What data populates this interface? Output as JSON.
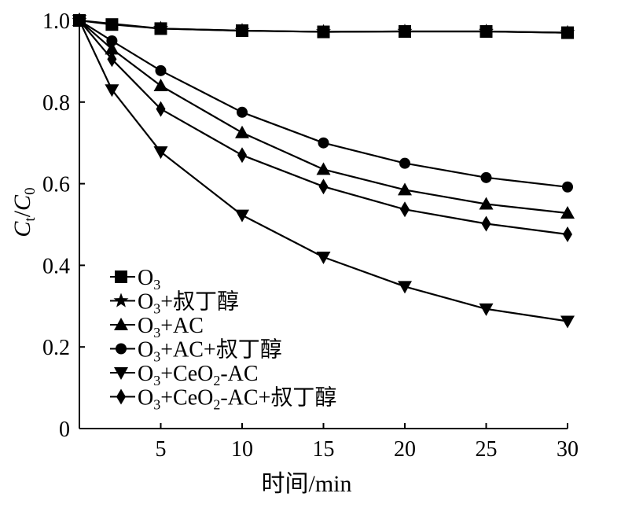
{
  "chart_data": {
    "type": "line",
    "xlabel": "时间/min",
    "ylabel": {
      "base": "C",
      "sub1": "t",
      "slash": "/",
      "base2": "C",
      "sub2": "0"
    },
    "xlim": [
      0,
      30
    ],
    "ylim": [
      0,
      1.0
    ],
    "x_ticks": [
      5,
      10,
      15,
      20,
      25,
      30
    ],
    "x_tick_labels": [
      "5",
      "10",
      "15",
      "20",
      "25",
      "30"
    ],
    "y_ticks": [
      0,
      0.2,
      0.4,
      0.6,
      0.8,
      1.0
    ],
    "y_tick_labels": [
      "0",
      "0.2",
      "0.4",
      "0.6",
      "0.8",
      "1.0"
    ],
    "grid": false,
    "legend_position": "lower-left",
    "x": [
      0,
      2,
      5,
      10,
      15,
      20,
      25,
      30
    ],
    "series": [
      {
        "name": "O3",
        "legend": {
          "pre": "O",
          "sub": "3",
          "post": ""
        },
        "marker": "square",
        "x": [
          0,
          2,
          5,
          10,
          15,
          20,
          25,
          30
        ],
        "values": [
          1.0,
          0.99,
          0.98,
          0.975,
          0.972,
          0.973,
          0.973,
          0.97
        ]
      },
      {
        "name": "O3+叔丁醇",
        "legend": {
          "pre": "O",
          "sub": "3",
          "post": "+叔丁醇"
        },
        "marker": "star",
        "x": [
          0,
          5,
          10,
          15,
          20,
          25,
          30
        ],
        "values": [
          1.0,
          0.98,
          0.975,
          0.972,
          0.973,
          0.973,
          0.97
        ]
      },
      {
        "name": "O3+AC",
        "legend": {
          "pre": "O",
          "sub": "3",
          "post": "+AC"
        },
        "marker": "triangle-up",
        "x": [
          0,
          2,
          5,
          10,
          15,
          20,
          25,
          30
        ],
        "values": [
          1.0,
          0.93,
          0.84,
          0.725,
          0.635,
          0.585,
          0.55,
          0.528
        ]
      },
      {
        "name": "O3+AC+叔丁醇",
        "legend": {
          "pre": "O",
          "sub": "3",
          "post": "+AC+叔丁醇"
        },
        "marker": "circle",
        "x": [
          0,
          2,
          5,
          10,
          15,
          20,
          25,
          30
        ],
        "values": [
          1.0,
          0.95,
          0.877,
          0.775,
          0.7,
          0.65,
          0.615,
          0.592
        ]
      },
      {
        "name": "O3+CeO2-AC",
        "legend": {
          "pre": "O",
          "sub": "3",
          "post": "+CeO",
          "sub2": "2",
          "post2": "-AC"
        },
        "marker": "triangle-down",
        "x": [
          0,
          2,
          5,
          10,
          15,
          20,
          25,
          30
        ],
        "values": [
          1.0,
          0.83,
          0.678,
          0.523,
          0.42,
          0.348,
          0.293,
          0.263
        ]
      },
      {
        "name": "O3+CeO2-AC+叔丁醇",
        "legend": {
          "pre": "O",
          "sub": "3",
          "post": "+CeO",
          "sub2": "2",
          "post2": "-AC+叔丁醇"
        },
        "marker": "diamond",
        "x": [
          0,
          2,
          5,
          10,
          15,
          20,
          25,
          30
        ],
        "values": [
          1.0,
          0.905,
          0.783,
          0.67,
          0.593,
          0.537,
          0.502,
          0.476
        ]
      }
    ]
  }
}
